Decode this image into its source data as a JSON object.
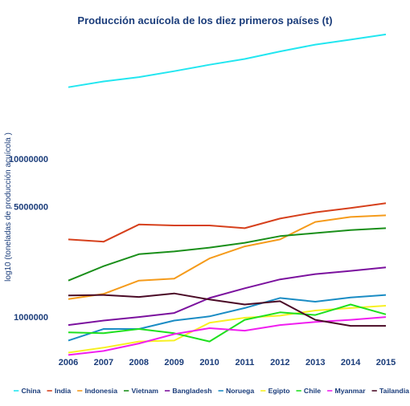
{
  "chart_data": {
    "type": "line",
    "title": "Producción acuícola de los diez primeros países (t)",
    "xlabel": "",
    "ylabel": "log10 (toneladas de producción acuícola )",
    "y_scale": "log",
    "ylim": [
      620000,
      60000000
    ],
    "y_ticks": [
      1000000,
      5000000,
      10000000
    ],
    "y_tick_labels": [
      "1000000",
      "5000000",
      "10000000"
    ],
    "grid": false,
    "legend_position": "bottom",
    "x": [
      "2006",
      "2007",
      "2008",
      "2009",
      "2010",
      "2011",
      "2012",
      "2013",
      "2014",
      "2015"
    ],
    "series": [
      {
        "name": "China",
        "color": "#22e6f0",
        "values": [
          28500000,
          31000000,
          33000000,
          36000000,
          39500000,
          43000000,
          48000000,
          53000000,
          57000000,
          61500000
        ]
      },
      {
        "name": "India",
        "color": "#d6401c",
        "values": [
          3100000,
          3000000,
          3850000,
          3800000,
          3800000,
          3650000,
          4200000,
          4600000,
          4900000,
          5250000
        ]
      },
      {
        "name": "Indonesia",
        "color": "#f59b1b",
        "values": [
          1300000,
          1400000,
          1700000,
          1750000,
          2350000,
          2800000,
          3100000,
          4000000,
          4300000,
          4400000
        ]
      },
      {
        "name": "Vietnam",
        "color": "#1a8f1a",
        "values": [
          1700000,
          2100000,
          2500000,
          2600000,
          2750000,
          2950000,
          3250000,
          3400000,
          3550000,
          3650000
        ]
      },
      {
        "name": "Bangladesh",
        "color": "#7b119e",
        "values": [
          890000,
          950000,
          1000000,
          1060000,
          1320000,
          1520000,
          1730000,
          1870000,
          1960000,
          2060000
        ]
      },
      {
        "name": "Noruega",
        "color": "#1a8cc4",
        "values": [
          710000,
          840000,
          840000,
          950000,
          1010000,
          1140000,
          1320000,
          1250000,
          1330000,
          1380000
        ]
      },
      {
        "name": "Egipto",
        "color": "#f7f022",
        "values": [
          595000,
          640000,
          700000,
          710000,
          920000,
          990000,
          1020000,
          1100000,
          1140000,
          1180000
        ]
      },
      {
        "name": "Chile",
        "color": "#1ee01e",
        "values": [
          800000,
          790000,
          840000,
          790000,
          700000,
          960000,
          1070000,
          1030000,
          1200000,
          1040000
        ]
      },
      {
        "name": "Myanmar",
        "color": "#f01ef0",
        "values": [
          575000,
          610000,
          680000,
          780000,
          850000,
          820000,
          890000,
          930000,
          960000,
          1000000
        ]
      },
      {
        "name": "Tailandia",
        "color": "#4a0a26",
        "values": [
          1370000,
          1380000,
          1340000,
          1410000,
          1290000,
          1200000,
          1260000,
          960000,
          880000,
          880000
        ]
      }
    ]
  }
}
